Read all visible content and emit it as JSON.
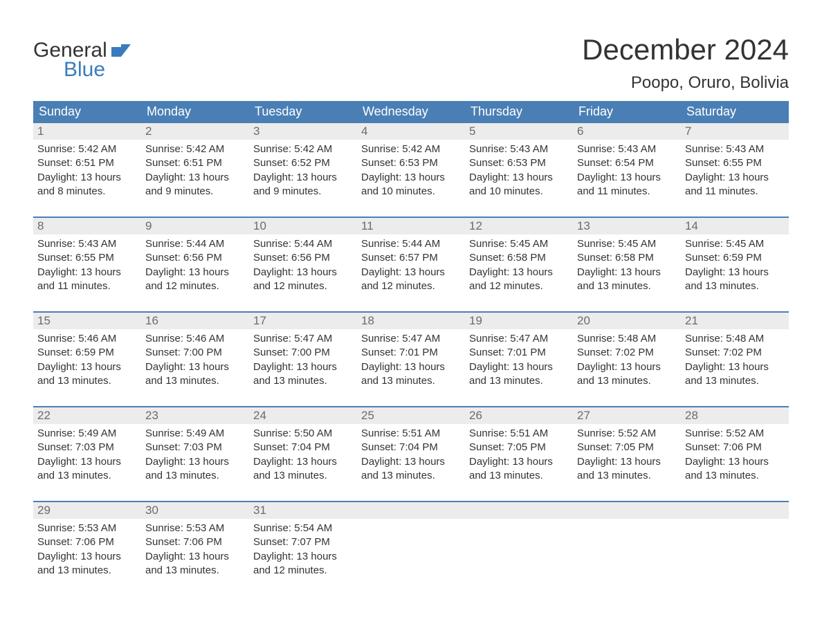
{
  "colors": {
    "header_bg": "#4a7fb5",
    "header_text": "#ffffff",
    "week_separator": "#4a7fb5",
    "daynum_bg": "#ececec",
    "daynum_text": "#6b6b6b",
    "body_text": "#333333",
    "logo_blue": "#3a7bbf",
    "background": "#ffffff"
  },
  "typography": {
    "title_fontsize": 42,
    "location_fontsize": 24,
    "dow_fontsize": 18,
    "daynum_fontsize": 17,
    "detail_fontsize": 15,
    "font_family": "Arial, Helvetica, sans-serif"
  },
  "logo": {
    "line1": "General",
    "line2": "Blue"
  },
  "title": "December 2024",
  "location": "Poopo, Oruro, Bolivia",
  "days_of_week": [
    "Sunday",
    "Monday",
    "Tuesday",
    "Wednesday",
    "Thursday",
    "Friday",
    "Saturday"
  ],
  "weeks": [
    [
      {
        "n": "1",
        "sunrise": "Sunrise: 5:42 AM",
        "sunset": "Sunset: 6:51 PM",
        "dl1": "Daylight: 13 hours",
        "dl2": "and 8 minutes."
      },
      {
        "n": "2",
        "sunrise": "Sunrise: 5:42 AM",
        "sunset": "Sunset: 6:51 PM",
        "dl1": "Daylight: 13 hours",
        "dl2": "and 9 minutes."
      },
      {
        "n": "3",
        "sunrise": "Sunrise: 5:42 AM",
        "sunset": "Sunset: 6:52 PM",
        "dl1": "Daylight: 13 hours",
        "dl2": "and 9 minutes."
      },
      {
        "n": "4",
        "sunrise": "Sunrise: 5:42 AM",
        "sunset": "Sunset: 6:53 PM",
        "dl1": "Daylight: 13 hours",
        "dl2": "and 10 minutes."
      },
      {
        "n": "5",
        "sunrise": "Sunrise: 5:43 AM",
        "sunset": "Sunset: 6:53 PM",
        "dl1": "Daylight: 13 hours",
        "dl2": "and 10 minutes."
      },
      {
        "n": "6",
        "sunrise": "Sunrise: 5:43 AM",
        "sunset": "Sunset: 6:54 PM",
        "dl1": "Daylight: 13 hours",
        "dl2": "and 11 minutes."
      },
      {
        "n": "7",
        "sunrise": "Sunrise: 5:43 AM",
        "sunset": "Sunset: 6:55 PM",
        "dl1": "Daylight: 13 hours",
        "dl2": "and 11 minutes."
      }
    ],
    [
      {
        "n": "8",
        "sunrise": "Sunrise: 5:43 AM",
        "sunset": "Sunset: 6:55 PM",
        "dl1": "Daylight: 13 hours",
        "dl2": "and 11 minutes."
      },
      {
        "n": "9",
        "sunrise": "Sunrise: 5:44 AM",
        "sunset": "Sunset: 6:56 PM",
        "dl1": "Daylight: 13 hours",
        "dl2": "and 12 minutes."
      },
      {
        "n": "10",
        "sunrise": "Sunrise: 5:44 AM",
        "sunset": "Sunset: 6:56 PM",
        "dl1": "Daylight: 13 hours",
        "dl2": "and 12 minutes."
      },
      {
        "n": "11",
        "sunrise": "Sunrise: 5:44 AM",
        "sunset": "Sunset: 6:57 PM",
        "dl1": "Daylight: 13 hours",
        "dl2": "and 12 minutes."
      },
      {
        "n": "12",
        "sunrise": "Sunrise: 5:45 AM",
        "sunset": "Sunset: 6:58 PM",
        "dl1": "Daylight: 13 hours",
        "dl2": "and 12 minutes."
      },
      {
        "n": "13",
        "sunrise": "Sunrise: 5:45 AM",
        "sunset": "Sunset: 6:58 PM",
        "dl1": "Daylight: 13 hours",
        "dl2": "and 13 minutes."
      },
      {
        "n": "14",
        "sunrise": "Sunrise: 5:45 AM",
        "sunset": "Sunset: 6:59 PM",
        "dl1": "Daylight: 13 hours",
        "dl2": "and 13 minutes."
      }
    ],
    [
      {
        "n": "15",
        "sunrise": "Sunrise: 5:46 AM",
        "sunset": "Sunset: 6:59 PM",
        "dl1": "Daylight: 13 hours",
        "dl2": "and 13 minutes."
      },
      {
        "n": "16",
        "sunrise": "Sunrise: 5:46 AM",
        "sunset": "Sunset: 7:00 PM",
        "dl1": "Daylight: 13 hours",
        "dl2": "and 13 minutes."
      },
      {
        "n": "17",
        "sunrise": "Sunrise: 5:47 AM",
        "sunset": "Sunset: 7:00 PM",
        "dl1": "Daylight: 13 hours",
        "dl2": "and 13 minutes."
      },
      {
        "n": "18",
        "sunrise": "Sunrise: 5:47 AM",
        "sunset": "Sunset: 7:01 PM",
        "dl1": "Daylight: 13 hours",
        "dl2": "and 13 minutes."
      },
      {
        "n": "19",
        "sunrise": "Sunrise: 5:47 AM",
        "sunset": "Sunset: 7:01 PM",
        "dl1": "Daylight: 13 hours",
        "dl2": "and 13 minutes."
      },
      {
        "n": "20",
        "sunrise": "Sunrise: 5:48 AM",
        "sunset": "Sunset: 7:02 PM",
        "dl1": "Daylight: 13 hours",
        "dl2": "and 13 minutes."
      },
      {
        "n": "21",
        "sunrise": "Sunrise: 5:48 AM",
        "sunset": "Sunset: 7:02 PM",
        "dl1": "Daylight: 13 hours",
        "dl2": "and 13 minutes."
      }
    ],
    [
      {
        "n": "22",
        "sunrise": "Sunrise: 5:49 AM",
        "sunset": "Sunset: 7:03 PM",
        "dl1": "Daylight: 13 hours",
        "dl2": "and 13 minutes."
      },
      {
        "n": "23",
        "sunrise": "Sunrise: 5:49 AM",
        "sunset": "Sunset: 7:03 PM",
        "dl1": "Daylight: 13 hours",
        "dl2": "and 13 minutes."
      },
      {
        "n": "24",
        "sunrise": "Sunrise: 5:50 AM",
        "sunset": "Sunset: 7:04 PM",
        "dl1": "Daylight: 13 hours",
        "dl2": "and 13 minutes."
      },
      {
        "n": "25",
        "sunrise": "Sunrise: 5:51 AM",
        "sunset": "Sunset: 7:04 PM",
        "dl1": "Daylight: 13 hours",
        "dl2": "and 13 minutes."
      },
      {
        "n": "26",
        "sunrise": "Sunrise: 5:51 AM",
        "sunset": "Sunset: 7:05 PM",
        "dl1": "Daylight: 13 hours",
        "dl2": "and 13 minutes."
      },
      {
        "n": "27",
        "sunrise": "Sunrise: 5:52 AM",
        "sunset": "Sunset: 7:05 PM",
        "dl1": "Daylight: 13 hours",
        "dl2": "and 13 minutes."
      },
      {
        "n": "28",
        "sunrise": "Sunrise: 5:52 AM",
        "sunset": "Sunset: 7:06 PM",
        "dl1": "Daylight: 13 hours",
        "dl2": "and 13 minutes."
      }
    ],
    [
      {
        "n": "29",
        "sunrise": "Sunrise: 5:53 AM",
        "sunset": "Sunset: 7:06 PM",
        "dl1": "Daylight: 13 hours",
        "dl2": "and 13 minutes."
      },
      {
        "n": "30",
        "sunrise": "Sunrise: 5:53 AM",
        "sunset": "Sunset: 7:06 PM",
        "dl1": "Daylight: 13 hours",
        "dl2": "and 13 minutes."
      },
      {
        "n": "31",
        "sunrise": "Sunrise: 5:54 AM",
        "sunset": "Sunset: 7:07 PM",
        "dl1": "Daylight: 13 hours",
        "dl2": "and 12 minutes."
      },
      null,
      null,
      null,
      null
    ]
  ]
}
